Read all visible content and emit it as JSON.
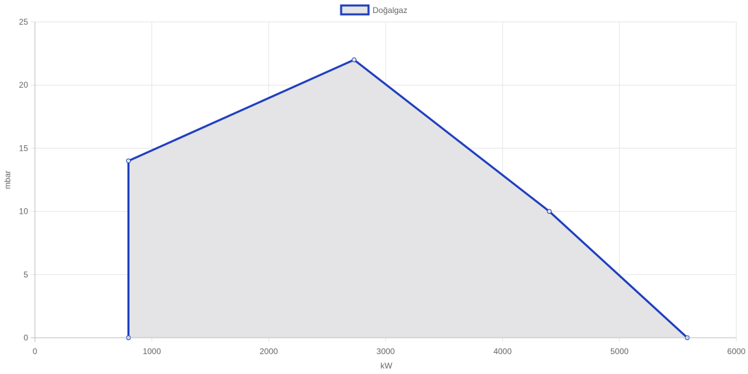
{
  "chart_data": {
    "type": "area",
    "xlabel": "kW",
    "ylabel": "mbar",
    "xlim": [
      0,
      6000
    ],
    "ylim": [
      0,
      25
    ],
    "x_ticks": [
      0,
      1000,
      2000,
      3000,
      4000,
      5000,
      6000
    ],
    "y_ticks": [
      0,
      5,
      10,
      15,
      20,
      25
    ],
    "grid": true,
    "legend_position": "top-center",
    "series": [
      {
        "name": "Doğalgaz",
        "line_color": "#1f3fbf",
        "fill_color": "#e4e4e6",
        "points": [
          {
            "x": 800,
            "y": 0
          },
          {
            "x": 800,
            "y": 14
          },
          {
            "x": 2730,
            "y": 22
          },
          {
            "x": 4400,
            "y": 10
          },
          {
            "x": 5580,
            "y": 0
          }
        ]
      }
    ]
  }
}
